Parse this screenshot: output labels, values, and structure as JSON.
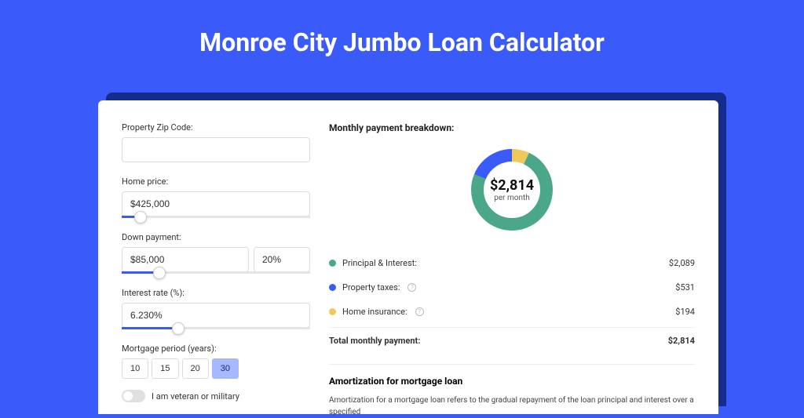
{
  "page": {
    "title": "Monroe City Jumbo Loan Calculator",
    "background_color": "#3a5af9",
    "shadow_color": "#142c8e"
  },
  "form": {
    "zip_label": "Property Zip Code:",
    "zip_value": "",
    "homeprice_label": "Home price:",
    "homeprice_value": "$425,000",
    "homeprice_slider_pct": 10,
    "downpayment_label": "Down payment:",
    "downpayment_amount": "$85,000",
    "downpayment_percent": "20%",
    "downpayment_slider_pct": 20,
    "interest_label": "Interest rate (%):",
    "interest_value": "6.230%",
    "interest_slider_pct": 30,
    "period_label": "Mortgage period (years):",
    "period_options": [
      "10",
      "15",
      "20",
      "30"
    ],
    "period_selected": "30",
    "veteran_label": "I am veteran or military",
    "veteran_on": false
  },
  "breakdown": {
    "title": "Monthly payment breakdown:",
    "center_amount": "$2,814",
    "center_sub": "per month",
    "items": [
      {
        "label": "Principal & Interest:",
        "value": "$2,089",
        "color": "#4aa789",
        "has_info": false,
        "num": 2089
      },
      {
        "label": "Property taxes:",
        "value": "$531",
        "color": "#3a5af9",
        "has_info": true,
        "num": 531
      },
      {
        "label": "Home insurance:",
        "value": "$194",
        "color": "#f0c95b",
        "has_info": true,
        "num": 194
      }
    ],
    "total_label": "Total monthly payment:",
    "total_value": "$2,814",
    "donut": {
      "stroke_width": 16,
      "radius": 44,
      "track_color": "#ffffff"
    }
  },
  "amortization": {
    "title": "Amortization for mortgage loan",
    "text": "Amortization for a mortgage loan refers to the gradual repayment of the loan principal and interest over a specified"
  }
}
